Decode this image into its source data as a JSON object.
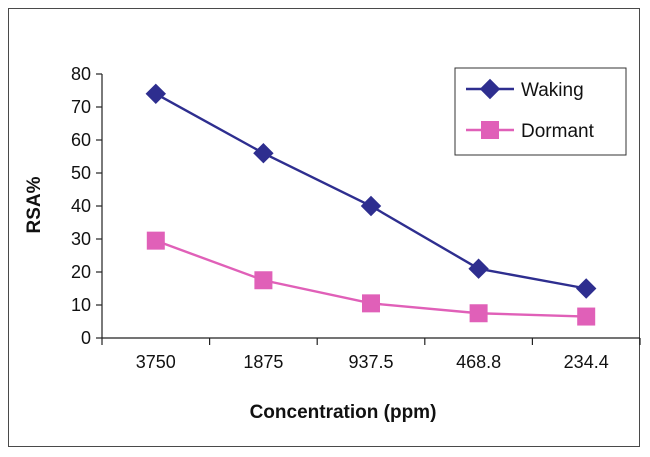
{
  "chart_data": {
    "type": "line",
    "title": "",
    "xlabel": "Concentration (ppm)",
    "ylabel": "RSA%",
    "categories": [
      "3750",
      "1875",
      "937.5",
      "468.8",
      "234.4"
    ],
    "ylim": [
      0,
      80
    ],
    "yticks": [
      0,
      10,
      20,
      30,
      40,
      50,
      60,
      70,
      80
    ],
    "grid": false,
    "legend_position": "top-right",
    "series": [
      {
        "name": "Waking",
        "values": [
          74,
          56,
          40,
          21,
          15
        ],
        "color": "#2e2e8f",
        "marker": "diamond"
      },
      {
        "name": "Dormant",
        "values": [
          29.5,
          17.5,
          10.5,
          7.5,
          6.5
        ],
        "color": "#e060b8",
        "marker": "square"
      }
    ]
  }
}
